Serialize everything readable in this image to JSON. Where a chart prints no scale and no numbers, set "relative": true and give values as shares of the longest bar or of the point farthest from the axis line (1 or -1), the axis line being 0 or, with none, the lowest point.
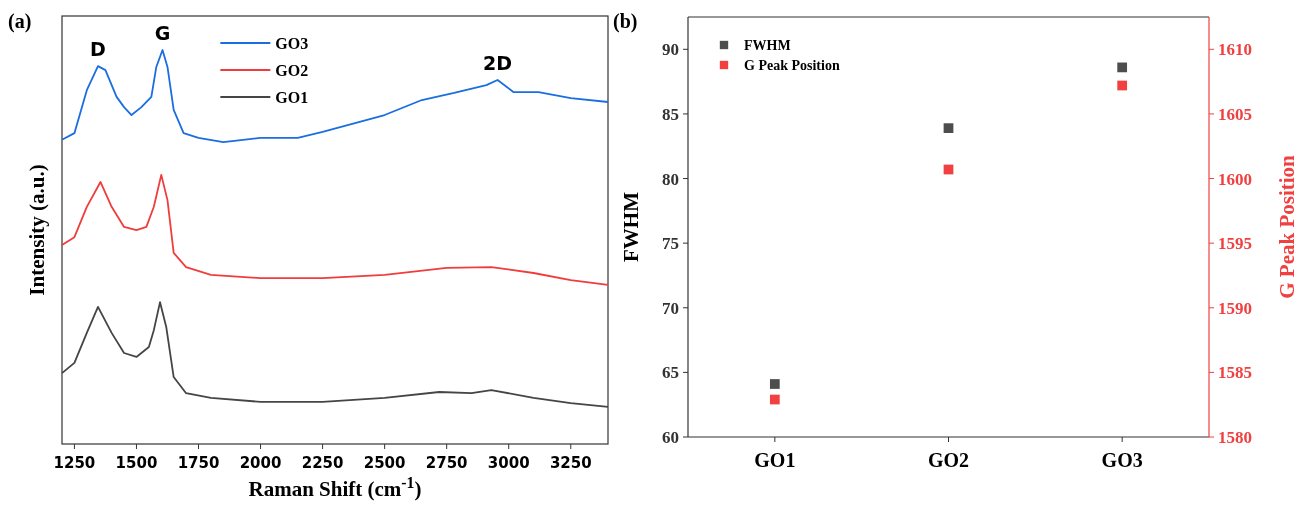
{
  "chart_data": [
    {
      "type": "line",
      "title": "(a)",
      "xlabel": "Raman Shift (cm$^{-1}$)",
      "ylabel": "Intensity (a.u.)",
      "relative": true,
      "xlim": [
        1200,
        3400
      ],
      "xticks": [
        1250,
        1500,
        1750,
        2000,
        2250,
        2500,
        2750,
        3000,
        3250
      ],
      "legend": "top",
      "annotations": [
        {
          "text": "D",
          "x": 1345,
          "y": 0.959
        },
        {
          "text": "G",
          "x": 1605,
          "y": 1.0
        },
        {
          "text": "2D",
          "x": 2955,
          "y": 0.924
        }
      ],
      "series": [
        {
          "name": "GO3",
          "color": "#1a6ee0",
          "x": [
            1200,
            1250,
            1300,
            1345,
            1375,
            1420,
            1450,
            1480,
            1520,
            1560,
            1580,
            1605,
            1625,
            1650,
            1690,
            1750,
            1850,
            2000,
            2150,
            2250,
            2500,
            2650,
            2780,
            2910,
            2955,
            3020,
            3120,
            3250,
            3400
          ],
          "values": [
            0.772,
            0.789,
            0.898,
            0.959,
            0.949,
            0.881,
            0.855,
            0.835,
            0.855,
            0.881,
            0.957,
            1.0,
            0.957,
            0.848,
            0.789,
            0.777,
            0.766,
            0.777,
            0.777,
            0.792,
            0.835,
            0.873,
            0.891,
            0.911,
            0.924,
            0.893,
            0.893,
            0.878,
            0.868
          ]
        },
        {
          "name": "GO2",
          "color": "#f03c3c",
          "x": [
            1200,
            1250,
            1300,
            1355,
            1400,
            1450,
            1500,
            1540,
            1570,
            1600,
            1625,
            1650,
            1700,
            1800,
            2000,
            2250,
            2500,
            2750,
            2930,
            3100,
            3250,
            3400
          ],
          "values": [
            0.505,
            0.525,
            0.602,
            0.665,
            0.602,
            0.551,
            0.543,
            0.551,
            0.602,
            0.683,
            0.619,
            0.485,
            0.449,
            0.429,
            0.421,
            0.421,
            0.429,
            0.447,
            0.449,
            0.434,
            0.416,
            0.404
          ]
        },
        {
          "name": "GO1",
          "color": "#454545",
          "x": [
            1200,
            1250,
            1300,
            1345,
            1400,
            1450,
            1500,
            1550,
            1570,
            1595,
            1620,
            1650,
            1700,
            1800,
            2000,
            2250,
            2500,
            2720,
            2850,
            2930,
            3100,
            3250,
            3400
          ],
          "values": [
            0.18,
            0.206,
            0.282,
            0.348,
            0.282,
            0.231,
            0.221,
            0.246,
            0.289,
            0.36,
            0.297,
            0.17,
            0.129,
            0.117,
            0.107,
            0.107,
            0.117,
            0.132,
            0.129,
            0.137,
            0.117,
            0.104,
            0.094
          ]
        }
      ]
    },
    {
      "type": "scatter",
      "title": "(b)",
      "categories": [
        "GO1",
        "GO2",
        "GO3"
      ],
      "ylabel": "FWHM",
      "y2label": "G Peak Position",
      "ylim": [
        60,
        92.5
      ],
      "yticks": [
        60,
        65,
        70,
        75,
        80,
        85,
        90
      ],
      "y2lim": [
        1580,
        1612.5
      ],
      "y2ticks": [
        1580,
        1585,
        1590,
        1595,
        1600,
        1605,
        1610
      ],
      "legend": "top left",
      "marker": "square",
      "series": [
        {
          "name": "FWHM",
          "color": "#4d4d4d",
          "values": [
            64.1,
            83.9,
            88.6
          ]
        },
        {
          "name": "G Peak Position",
          "color": "#f04040",
          "axis": "y2",
          "values": [
            1582.9,
            1600.7,
            1607.2
          ]
        }
      ]
    }
  ]
}
